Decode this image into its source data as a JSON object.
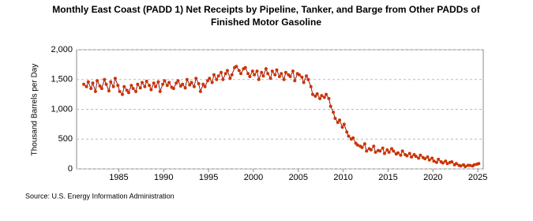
{
  "chart_data": {
    "type": "line",
    "title": [
      "Monthly East Coast (PADD 1) Net Receipts by Pipeline, Tanker, and Barge from Other PADDs of",
      "Finished Motor Gasoline"
    ],
    "y_label": "Thousand Barrels per Day",
    "source": "Source: U.S. Energy Information Administration",
    "xlim": [
      1980.3,
      2025.6
    ],
    "xticks": [
      1985,
      1990,
      1995,
      2000,
      2005,
      2010,
      2015,
      2020,
      2025
    ],
    "ylim": [
      0,
      2000
    ],
    "yticks": [
      0,
      500,
      {
        "value": 1000,
        "label": "1,000"
      },
      {
        "value": 1500,
        "label": "1,500"
      },
      {
        "value": 2000,
        "label": "2,000"
      }
    ],
    "grid": true,
    "x": [
      1981.1,
      1981.4,
      1981.6,
      1981.9,
      1982.1,
      1982.4,
      1982.6,
      1982.9,
      1983.1,
      1983.4,
      1983.6,
      1983.9,
      1984.1,
      1984.4,
      1984.6,
      1984.9,
      1985.1,
      1985.4,
      1985.6,
      1985.9,
      1986.1,
      1986.4,
      1986.6,
      1986.9,
      1987.1,
      1987.4,
      1987.6,
      1987.9,
      1988.1,
      1988.4,
      1988.6,
      1988.9,
      1989.1,
      1989.4,
      1989.6,
      1989.9,
      1990.1,
      1990.4,
      1990.6,
      1990.9,
      1991.1,
      1991.4,
      1991.6,
      1991.9,
      1992.1,
      1992.4,
      1992.6,
      1992.9,
      1993.1,
      1993.4,
      1993.6,
      1993.9,
      1994.1,
      1994.4,
      1994.6,
      1994.9,
      1995.1,
      1995.4,
      1995.6,
      1995.9,
      1996.1,
      1996.4,
      1996.6,
      1996.9,
      1997.1,
      1997.4,
      1997.6,
      1997.9,
      1998.1,
      1998.4,
      1998.6,
      1998.9,
      1999.1,
      1999.4,
      1999.6,
      1999.9,
      2000.1,
      2000.4,
      2000.6,
      2000.9,
      2001.1,
      2001.4,
      2001.6,
      2001.9,
      2002.1,
      2002.4,
      2002.6,
      2002.9,
      2003.1,
      2003.4,
      2003.6,
      2003.9,
      2004.1,
      2004.4,
      2004.6,
      2004.9,
      2005.1,
      2005.4,
      2005.6,
      2005.9,
      2006.1,
      2006.4,
      2006.6,
      2006.9,
      2007.1,
      2007.4,
      2007.6,
      2007.9,
      2008.1,
      2008.4,
      2008.6,
      2008.9,
      2009.1,
      2009.4,
      2009.6,
      2009.9,
      2010.1,
      2010.4,
      2010.6,
      2010.9,
      2011.1,
      2011.4,
      2011.6,
      2011.9,
      2012.1,
      2012.4,
      2012.6,
      2012.9,
      2013.1,
      2013.4,
      2013.6,
      2013.9,
      2014.1,
      2014.4,
      2014.6,
      2014.9,
      2015.1,
      2015.4,
      2015.6,
      2015.9,
      2016.1,
      2016.4,
      2016.6,
      2016.9,
      2017.1,
      2017.4,
      2017.6,
      2017.9,
      2018.1,
      2018.4,
      2018.6,
      2018.9,
      2019.1,
      2019.4,
      2019.6,
      2019.9,
      2020.1,
      2020.4,
      2020.6,
      2020.9,
      2021.1,
      2021.4,
      2021.6,
      2021.9,
      2022.1,
      2022.4,
      2022.6,
      2022.9,
      2023.1,
      2023.4,
      2023.6,
      2023.9,
      2024.1,
      2024.4,
      2024.6,
      2024.9,
      2025.1
    ],
    "series": [
      {
        "color": "#8b1a1a",
        "marker_color": "#cc3300",
        "values": [
          1420,
          1380,
          1460,
          1350,
          1440,
          1300,
          1480,
          1390,
          1350,
          1500,
          1420,
          1310,
          1460,
          1380,
          1520,
          1400,
          1300,
          1250,
          1380,
          1320,
          1280,
          1400,
          1350,
          1300,
          1420,
          1360,
          1450,
          1380,
          1470,
          1400,
          1330,
          1440,
          1380,
          1460,
          1300,
          1420,
          1480,
          1400,
          1450,
          1370,
          1350,
          1440,
          1480,
          1390,
          1420,
          1360,
          1500,
          1410,
          1450,
          1380,
          1520,
          1430,
          1300,
          1420,
          1380,
          1480,
          1520,
          1450,
          1580,
          1500,
          1560,
          1620,
          1500,
          1600,
          1650,
          1520,
          1580,
          1700,
          1720,
          1650,
          1600,
          1680,
          1700,
          1600,
          1550,
          1640,
          1580,
          1640,
          1500,
          1620,
          1560,
          1680,
          1600,
          1520,
          1640,
          1580,
          1660,
          1550,
          1600,
          1500,
          1620,
          1580,
          1550,
          1640,
          1480,
          1600,
          1580,
          1540,
          1450,
          1560,
          1500,
          1380,
          1250,
          1220,
          1260,
          1180,
          1230,
          1200,
          1250,
          1180,
          1050,
          950,
          850,
          780,
          820,
          700,
          750,
          620,
          550,
          500,
          520,
          430,
          400,
          380,
          360,
          420,
          300,
          340,
          320,
          380,
          280,
          310,
          300,
          350,
          260,
          320,
          280,
          340,
          300,
          250,
          270,
          230,
          300,
          240,
          220,
          260,
          200,
          240,
          210,
          180,
          230,
          190,
          170,
          200,
          150,
          180,
          130,
          110,
          160,
          120,
          100,
          130,
          90,
          110,
          120,
          70,
          90,
          60,
          50,
          70,
          40,
          60,
          60,
          50,
          70,
          80,
          90
        ]
      }
    ]
  }
}
